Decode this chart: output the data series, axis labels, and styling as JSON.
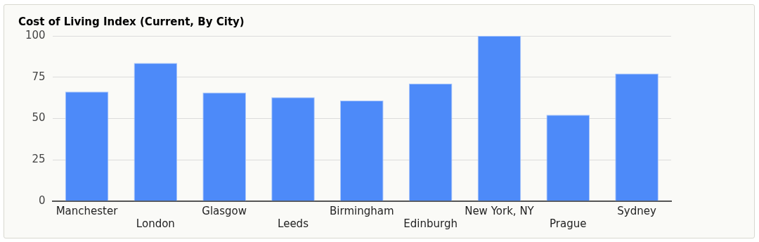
{
  "chart_data": {
    "type": "bar",
    "title": "Cost of Living Index (Current, By City)",
    "categories": [
      "Manchester",
      "London",
      "Glasgow",
      "Leeds",
      "Birmingham",
      "Edinburgh",
      "New York, NY",
      "Prague",
      "Sydney"
    ],
    "values": [
      66.3,
      83.6,
      65.7,
      62.9,
      60.8,
      71.2,
      100,
      52.2,
      77.2
    ],
    "color": "#4d8af9",
    "ylim": [
      0,
      100
    ],
    "yticks": [
      0,
      25,
      50,
      75,
      100
    ],
    "grid": "y"
  }
}
